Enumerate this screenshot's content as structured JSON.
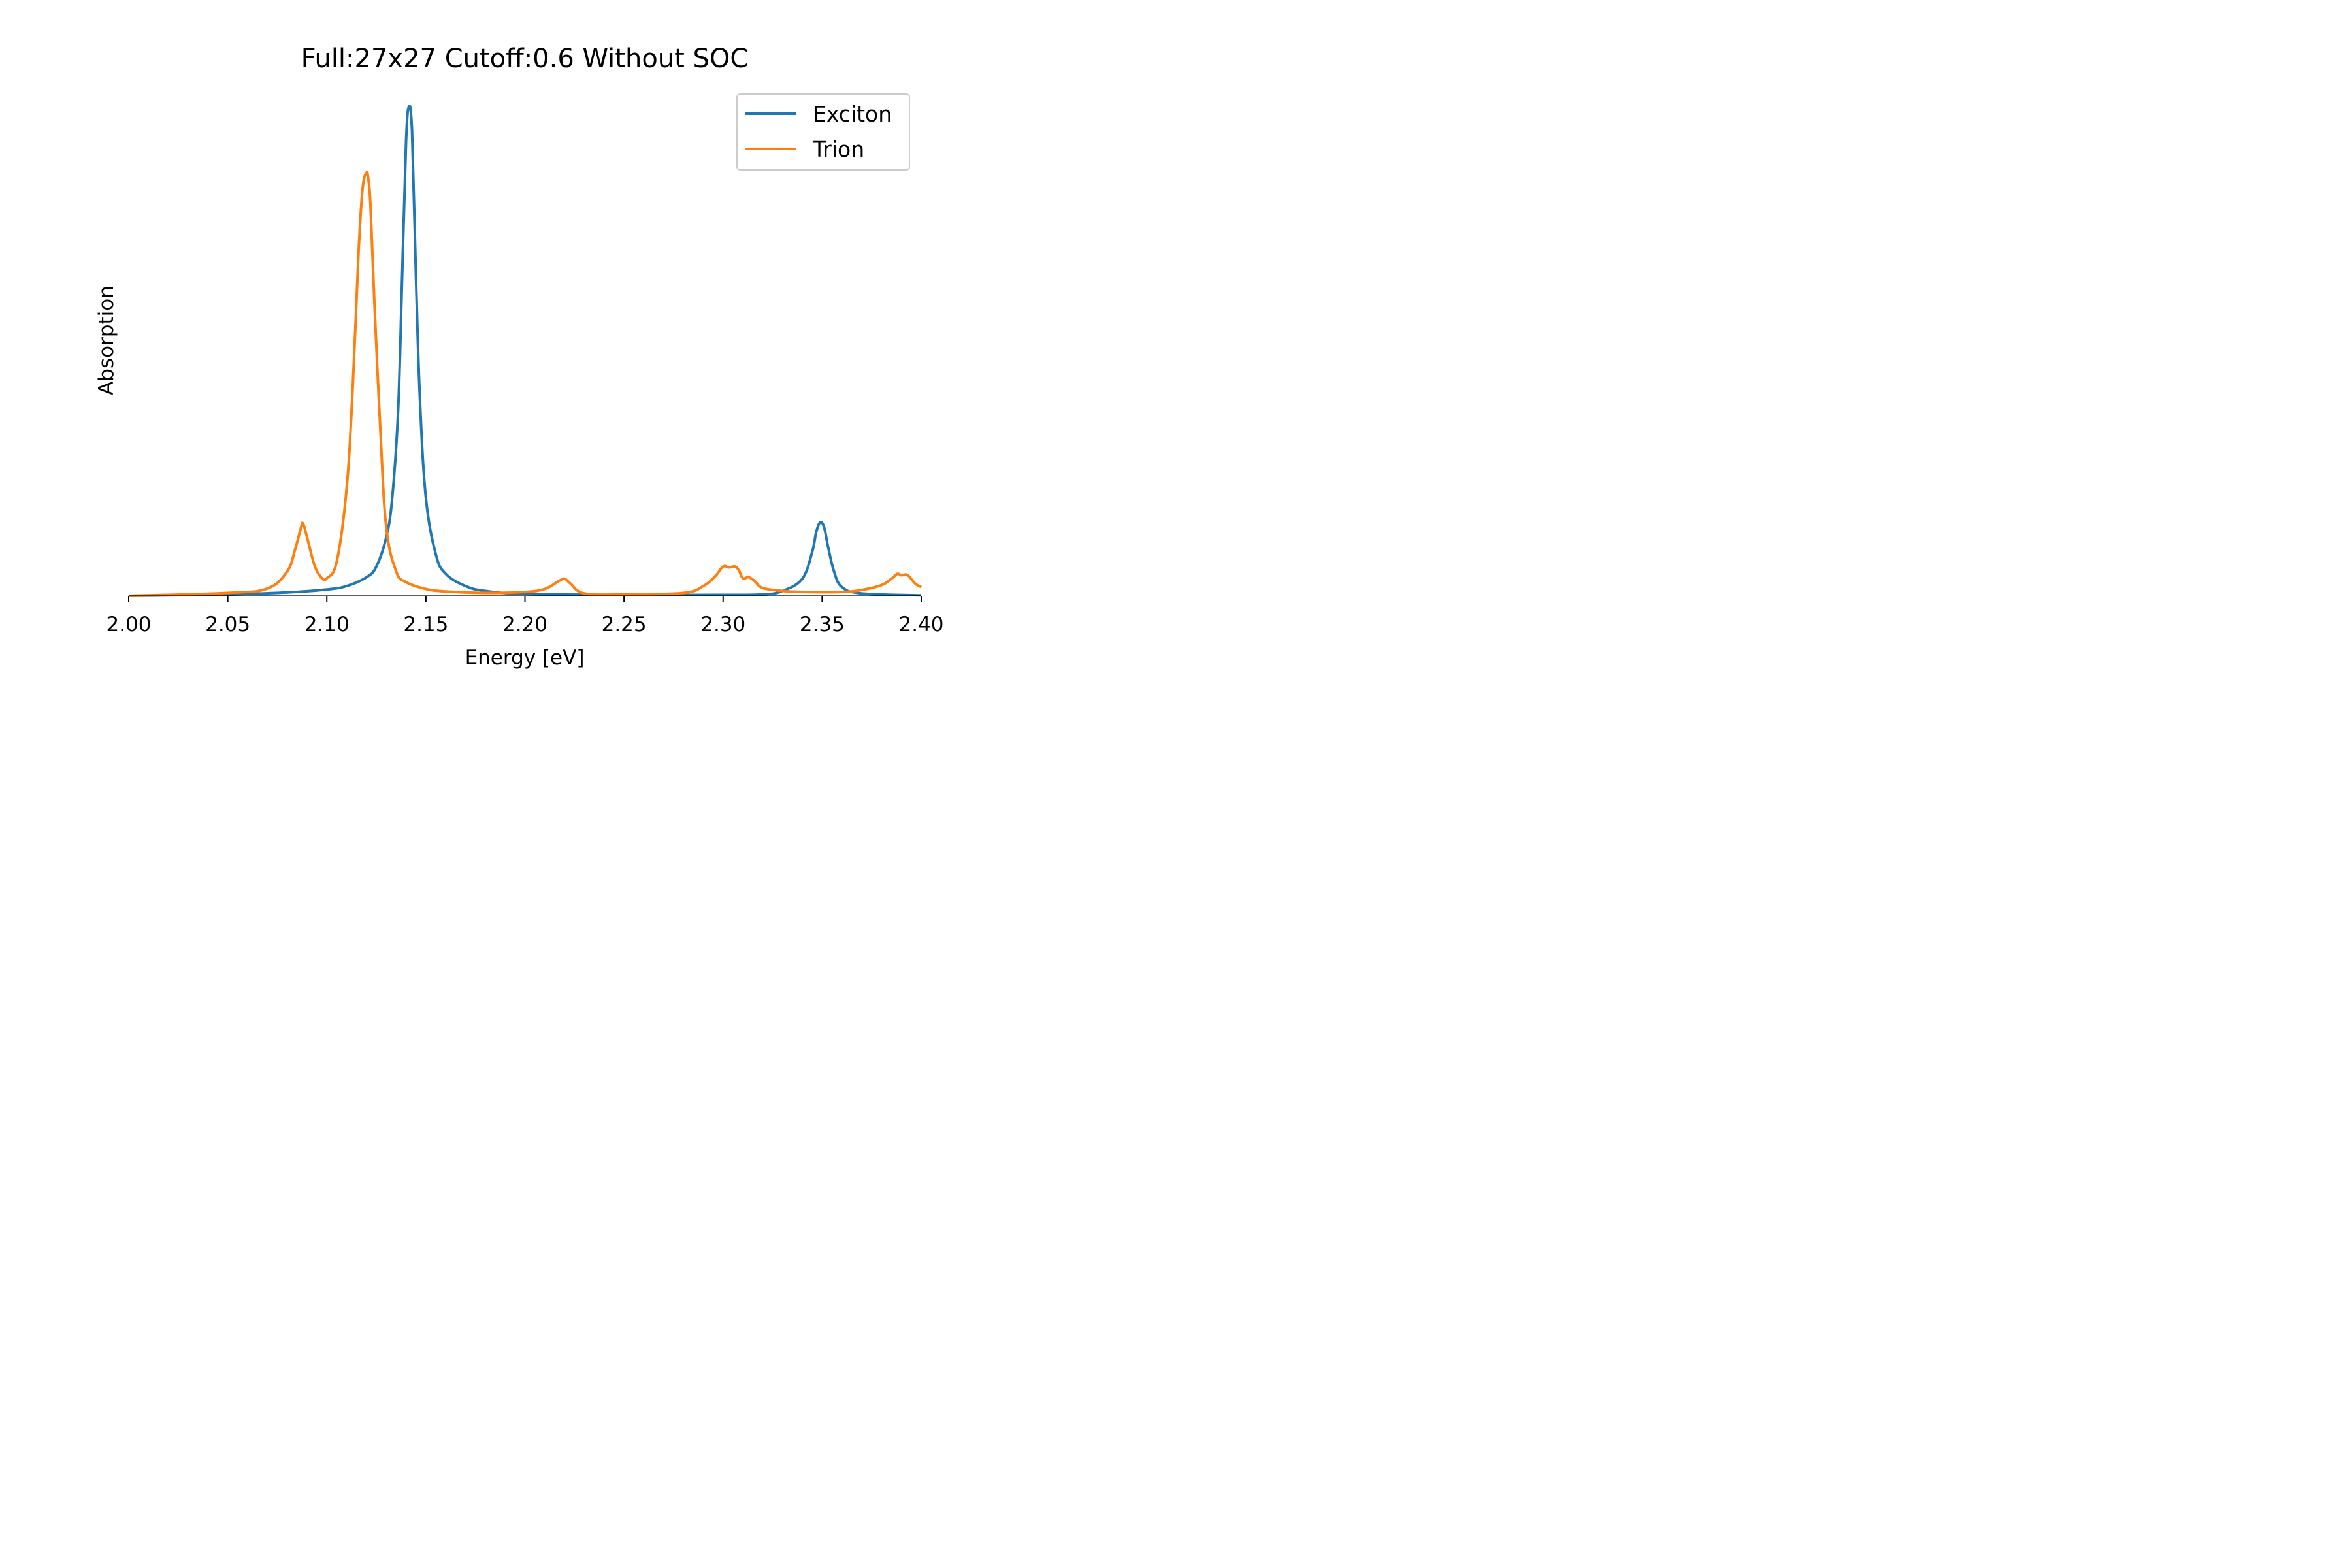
{
  "chart_data": {
    "type": "line",
    "title": "Full:27x27 Cutoff:0.6 Without SOC",
    "xlabel": "Energy [eV]",
    "ylabel": "Absorption",
    "xlim": [
      2.0,
      2.4
    ],
    "ylim": [
      0,
      1.0
    ],
    "xticks": [
      2.0,
      2.05,
      2.1,
      2.15,
      2.2,
      2.25,
      2.3,
      2.35,
      2.4
    ],
    "xtick_labels": [
      "2.00",
      "2.05",
      "2.10",
      "2.15",
      "2.20",
      "2.25",
      "2.30",
      "2.35",
      "2.40"
    ],
    "yticks_shown": false,
    "grid": false,
    "legend": "top-right",
    "series": [
      {
        "name": "Exciton",
        "color": "#1f77b4",
        "x": [
          2.0,
          2.05,
          2.08,
          2.1,
          2.11,
          2.12,
          2.125,
          2.13,
          2.133,
          2.136,
          2.138,
          2.14,
          2.1415,
          2.143,
          2.145,
          2.147,
          2.15,
          2.155,
          2.16,
          2.17,
          2.18,
          2.2,
          2.25,
          2.3,
          2.32,
          2.33,
          2.34,
          2.345,
          2.347,
          2.349,
          2.351,
          2.353,
          2.356,
          2.36,
          2.37,
          2.4
        ],
        "y": [
          0.0,
          0.003,
          0.007,
          0.013,
          0.02,
          0.038,
          0.06,
          0.12,
          0.2,
          0.38,
          0.65,
          0.93,
          1.0,
          0.95,
          0.65,
          0.4,
          0.2,
          0.085,
          0.045,
          0.02,
          0.01,
          0.004,
          0.002,
          0.002,
          0.003,
          0.01,
          0.035,
          0.09,
          0.13,
          0.15,
          0.14,
          0.1,
          0.05,
          0.018,
          0.005,
          0.001
        ]
      },
      {
        "name": "Trion",
        "color": "#ff7f0e",
        "x": [
          2.0,
          2.05,
          2.07,
          2.08,
          2.084,
          2.087,
          2.088,
          2.09,
          2.094,
          2.098,
          2.1,
          2.105,
          2.11,
          2.113,
          2.116,
          2.118,
          2.12,
          2.121,
          2.122,
          2.124,
          2.127,
          2.13,
          2.135,
          2.14,
          2.15,
          2.16,
          2.18,
          2.2,
          2.21,
          2.217,
          2.22,
          2.223,
          2.23,
          2.25,
          2.28,
          2.29,
          2.296,
          2.3,
          2.303,
          2.306,
          2.308,
          2.31,
          2.313,
          2.316,
          2.32,
          2.33,
          2.34,
          2.36,
          2.37,
          2.38,
          2.385,
          2.388,
          2.39,
          2.393,
          2.397,
          2.4
        ],
        "y": [
          0.0,
          0.006,
          0.015,
          0.05,
          0.095,
          0.14,
          0.148,
          0.12,
          0.06,
          0.034,
          0.036,
          0.07,
          0.22,
          0.42,
          0.7,
          0.83,
          0.865,
          0.85,
          0.8,
          0.6,
          0.34,
          0.14,
          0.05,
          0.028,
          0.014,
          0.009,
          0.006,
          0.008,
          0.014,
          0.03,
          0.035,
          0.025,
          0.005,
          0.003,
          0.006,
          0.02,
          0.04,
          0.06,
          0.058,
          0.06,
          0.052,
          0.036,
          0.038,
          0.03,
          0.016,
          0.01,
          0.008,
          0.008,
          0.012,
          0.022,
          0.035,
          0.045,
          0.042,
          0.043,
          0.025,
          0.018
        ]
      }
    ]
  }
}
